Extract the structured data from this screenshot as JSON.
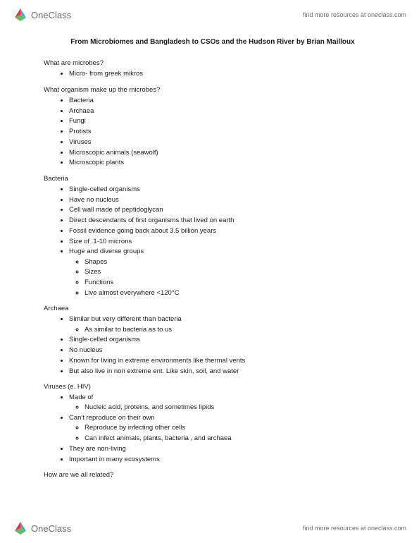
{
  "brand": {
    "name": "OneClass",
    "tagline": "find more resources at oneclass.com"
  },
  "title": "From Microbiomes and Bangladesh to CSOs and the Hudson River by Brian Mailloux",
  "sections": [
    {
      "heading": "What are microbes?",
      "items": [
        {
          "text": "Micro- from greek mikros"
        }
      ]
    },
    {
      "heading": "What organism make up the microbes?",
      "items": [
        {
          "text": "Bacteria"
        },
        {
          "text": "Archaea"
        },
        {
          "text": "Fungi"
        },
        {
          "text": "Protists"
        },
        {
          "text": "Viruses"
        },
        {
          "text": "Microscopic animals (seawolf)"
        },
        {
          "text": "Microscopic plants"
        }
      ]
    },
    {
      "heading": "Bacteria",
      "items": [
        {
          "text": "Single-celled organisms"
        },
        {
          "text": "Have no nucleus"
        },
        {
          "text": "Cell wall made of peptidoglycan"
        },
        {
          "text": "Direct descendants of first organisms that lived on earth"
        },
        {
          "text": "Fossil evidence going back about 3.5 billion years"
        },
        {
          "text": "Size of .1-10 microns"
        },
        {
          "text": "Huge and diverse groups",
          "sub": [
            "Shapes",
            "Sizes",
            "Functions",
            "Live almost everywhere <120°C"
          ]
        }
      ]
    },
    {
      "heading": "Archaea",
      "items": [
        {
          "text": "Similar but very different than bacteria",
          "sub": [
            "As similar to bacteria as to us"
          ]
        },
        {
          "text": "Single-celled organisms"
        },
        {
          "text": "No nucleus"
        },
        {
          "text": "Known for living in extreme environments like thermal vents"
        },
        {
          "text": "But also live in non extreme ent. Like skin, soil, and water"
        }
      ]
    },
    {
      "heading": "Viruses (e. HIV)",
      "items": [
        {
          "text": "Made of",
          "sub": [
            "Nucleic acid, proteins, and sometimes lipids"
          ]
        },
        {
          "text": "Can't reproduce on their own",
          "sub": [
            "Reproduce by infecting other cells",
            "Can infect animals, plants, bacteria , and archaea"
          ]
        },
        {
          "text": "They are non-living"
        },
        {
          "text": "Important in many ecosystems"
        }
      ]
    },
    {
      "heading": "How are we all related?",
      "items": []
    }
  ]
}
